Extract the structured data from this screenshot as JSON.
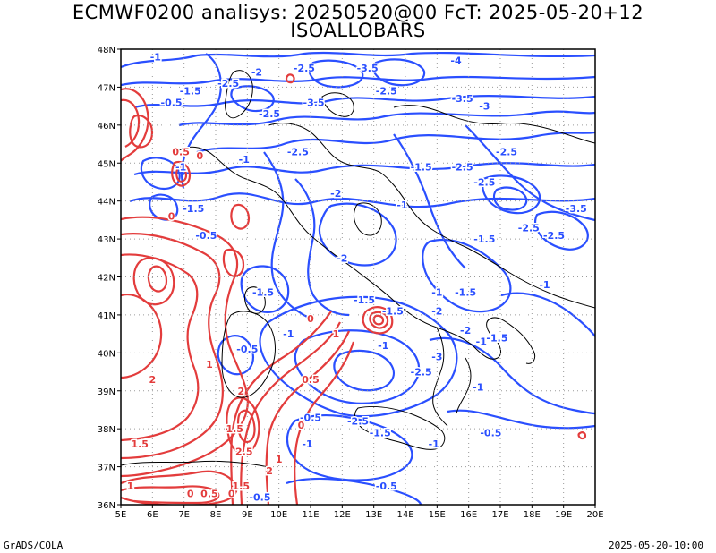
{
  "title_line1": "ECMWF0200 analisys: 20250520@00 FcT: 2025-05-20+12",
  "title_line2": "ISOALLOBARS",
  "footer_left": "GrADS/COLA",
  "footer_right": "2025-05-20-10:00",
  "colors": {
    "negative_contour": "#2a4fff",
    "positive_contour": "#e33c3c",
    "coastline": "#000000",
    "grid": "#9a9a9a"
  },
  "axes": {
    "lon_labels": [
      "5E",
      "6E",
      "7E",
      "8E",
      "9E",
      "10E",
      "11E",
      "12E",
      "13E",
      "14E",
      "15E",
      "16E",
      "17E",
      "18E",
      "19E",
      "20E"
    ],
    "lat_labels": [
      "36N",
      "37N",
      "38N",
      "39N",
      "40N",
      "41N",
      "42N",
      "43N",
      "44N",
      "45N",
      "46N",
      "47N",
      "48N"
    ]
  },
  "contour_labels": [
    {
      "text": "-1",
      "lon": 6.1,
      "lat": 47.8,
      "sign": "neg"
    },
    {
      "text": "-2",
      "lon": 9.3,
      "lat": 47.4,
      "sign": "neg"
    },
    {
      "text": "-2.5",
      "lon": 10.8,
      "lat": 47.5,
      "sign": "neg"
    },
    {
      "text": "-3.5",
      "lon": 12.8,
      "lat": 47.5,
      "sign": "neg"
    },
    {
      "text": "-4",
      "lon": 15.6,
      "lat": 47.7,
      "sign": "neg"
    },
    {
      "text": "-2.5",
      "lon": 8.4,
      "lat": 47.1,
      "sign": "neg"
    },
    {
      "text": "-1.5",
      "lon": 7.2,
      "lat": 46.9,
      "sign": "neg"
    },
    {
      "text": "-0.5",
      "lon": 6.6,
      "lat": 46.6,
      "sign": "neg"
    },
    {
      "text": "-2.5",
      "lon": 9.7,
      "lat": 46.3,
      "sign": "neg"
    },
    {
      "text": "-3.5",
      "lon": 11.1,
      "lat": 46.6,
      "sign": "neg"
    },
    {
      "text": "-2.5",
      "lon": 13.4,
      "lat": 46.9,
      "sign": "neg"
    },
    {
      "text": "-3.5",
      "lon": 15.8,
      "lat": 46.7,
      "sign": "neg"
    },
    {
      "text": "-3",
      "lon": 16.5,
      "lat": 46.5,
      "sign": "neg"
    },
    {
      "text": "-2.5",
      "lon": 10.6,
      "lat": 45.3,
      "sign": "neg"
    },
    {
      "text": "-1",
      "lon": 8.9,
      "lat": 45.1,
      "sign": "neg"
    },
    {
      "text": "-1.5",
      "lon": 14.5,
      "lat": 44.9,
      "sign": "neg"
    },
    {
      "text": "-2.5",
      "lon": 15.8,
      "lat": 44.9,
      "sign": "neg"
    },
    {
      "text": "-2.5",
      "lon": 17.2,
      "lat": 45.3,
      "sign": "neg"
    },
    {
      "text": "-2.5",
      "lon": 16.5,
      "lat": 44.5,
      "sign": "neg"
    },
    {
      "text": "-2",
      "lon": 11.8,
      "lat": 44.2,
      "sign": "neg"
    },
    {
      "text": "-1",
      "lon": 13.9,
      "lat": 43.9,
      "sign": "neg"
    },
    {
      "text": "-1.5",
      "lon": 7.3,
      "lat": 43.8,
      "sign": "neg"
    },
    {
      "text": "-3.5",
      "lon": 19.4,
      "lat": 43.8,
      "sign": "neg"
    },
    {
      "text": "-2.5",
      "lon": 17.9,
      "lat": 43.3,
      "sign": "neg"
    },
    {
      "text": "-1.5",
      "lon": 16.5,
      "lat": 43.0,
      "sign": "neg"
    },
    {
      "text": "-2.5",
      "lon": 18.7,
      "lat": 43.1,
      "sign": "neg"
    },
    {
      "text": "-2",
      "lon": 12.0,
      "lat": 42.5,
      "sign": "neg"
    },
    {
      "text": "-1.5",
      "lon": 9.5,
      "lat": 41.6,
      "sign": "neg"
    },
    {
      "text": "-1.5",
      "lon": 12.7,
      "lat": 41.4,
      "sign": "neg"
    },
    {
      "text": "-1.5",
      "lon": 13.6,
      "lat": 41.1,
      "sign": "neg"
    },
    {
      "text": "-1",
      "lon": 15.0,
      "lat": 41.6,
      "sign": "neg"
    },
    {
      "text": "-1.5",
      "lon": 15.9,
      "lat": 41.6,
      "sign": "neg"
    },
    {
      "text": "-2",
      "lon": 15.0,
      "lat": 41.1,
      "sign": "neg"
    },
    {
      "text": "-1",
      "lon": 18.4,
      "lat": 41.8,
      "sign": "neg"
    },
    {
      "text": "-1",
      "lon": 10.3,
      "lat": 40.5,
      "sign": "neg"
    },
    {
      "text": "-0.5",
      "lon": 9.0,
      "lat": 40.1,
      "sign": "neg"
    },
    {
      "text": "-1",
      "lon": 13.3,
      "lat": 40.2,
      "sign": "neg"
    },
    {
      "text": "-2",
      "lon": 15.9,
      "lat": 40.6,
      "sign": "neg"
    },
    {
      "text": "-1.5",
      "lon": 16.9,
      "lat": 40.4,
      "sign": "neg"
    },
    {
      "text": "-3",
      "lon": 15.0,
      "lat": 39.9,
      "sign": "neg"
    },
    {
      "text": "-1",
      "lon": 16.4,
      "lat": 40.3,
      "sign": "neg"
    },
    {
      "text": "-2.5",
      "lon": 14.5,
      "lat": 39.5,
      "sign": "neg"
    },
    {
      "text": "-1",
      "lon": 16.3,
      "lat": 39.1,
      "sign": "neg"
    },
    {
      "text": "-0.5",
      "lon": 11.0,
      "lat": 38.3,
      "sign": "neg"
    },
    {
      "text": "-2.5",
      "lon": 12.5,
      "lat": 38.2,
      "sign": "neg"
    },
    {
      "text": "-1.5",
      "lon": 13.2,
      "lat": 37.9,
      "sign": "neg"
    },
    {
      "text": "-1",
      "lon": 10.9,
      "lat": 37.6,
      "sign": "neg"
    },
    {
      "text": "-1",
      "lon": 14.9,
      "lat": 37.6,
      "sign": "neg"
    },
    {
      "text": "-0.5",
      "lon": 16.7,
      "lat": 37.9,
      "sign": "neg"
    },
    {
      "text": "-0.5",
      "lon": 9.4,
      "lat": 36.2,
      "sign": "neg"
    },
    {
      "text": "-0.5",
      "lon": 13.4,
      "lat": 36.5,
      "sign": "neg"
    },
    {
      "text": "0.5",
      "lon": 6.9,
      "lat": 45.3,
      "sign": "pos"
    },
    {
      "text": "0",
      "lon": 7.5,
      "lat": 45.2,
      "sign": "pos"
    },
    {
      "text": "-1",
      "lon": 6.9,
      "lat": 44.9,
      "sign": "neg"
    },
    {
      "text": "0",
      "lon": 6.6,
      "lat": 43.6,
      "sign": "pos"
    },
    {
      "text": "-0.5",
      "lon": 7.7,
      "lat": 43.1,
      "sign": "neg"
    },
    {
      "text": "0",
      "lon": 11.0,
      "lat": 40.9,
      "sign": "pos"
    },
    {
      "text": "1",
      "lon": 11.8,
      "lat": 40.5,
      "sign": "pos"
    },
    {
      "text": "0.5",
      "lon": 11.0,
      "lat": 39.3,
      "sign": "pos"
    },
    {
      "text": "1.5",
      "lon": 8.6,
      "lat": 38.0,
      "sign": "pos"
    },
    {
      "text": "2",
      "lon": 8.8,
      "lat": 39.0,
      "sign": "pos"
    },
    {
      "text": "2.5",
      "lon": 8.9,
      "lat": 37.4,
      "sign": "pos"
    },
    {
      "text": "2",
      "lon": 9.7,
      "lat": 36.9,
      "sign": "pos"
    },
    {
      "text": "1",
      "lon": 10.0,
      "lat": 37.2,
      "sign": "pos"
    },
    {
      "text": "1.5",
      "lon": 8.8,
      "lat": 36.5,
      "sign": "pos"
    },
    {
      "text": "0",
      "lon": 8.5,
      "lat": 36.3,
      "sign": "pos"
    },
    {
      "text": "0.5",
      "lon": 7.8,
      "lat": 36.3,
      "sign": "pos"
    },
    {
      "text": "0",
      "lon": 7.2,
      "lat": 36.3,
      "sign": "pos"
    },
    {
      "text": "1",
      "lon": 5.3,
      "lat": 36.5,
      "sign": "pos"
    },
    {
      "text": "1.5",
      "lon": 5.6,
      "lat": 37.6,
      "sign": "pos"
    },
    {
      "text": "2",
      "lon": 6.0,
      "lat": 39.3,
      "sign": "pos"
    },
    {
      "text": "1",
      "lon": 7.8,
      "lat": 39.7,
      "sign": "pos"
    },
    {
      "text": "0",
      "lon": 10.7,
      "lat": 38.1,
      "sign": "pos"
    }
  ]
}
